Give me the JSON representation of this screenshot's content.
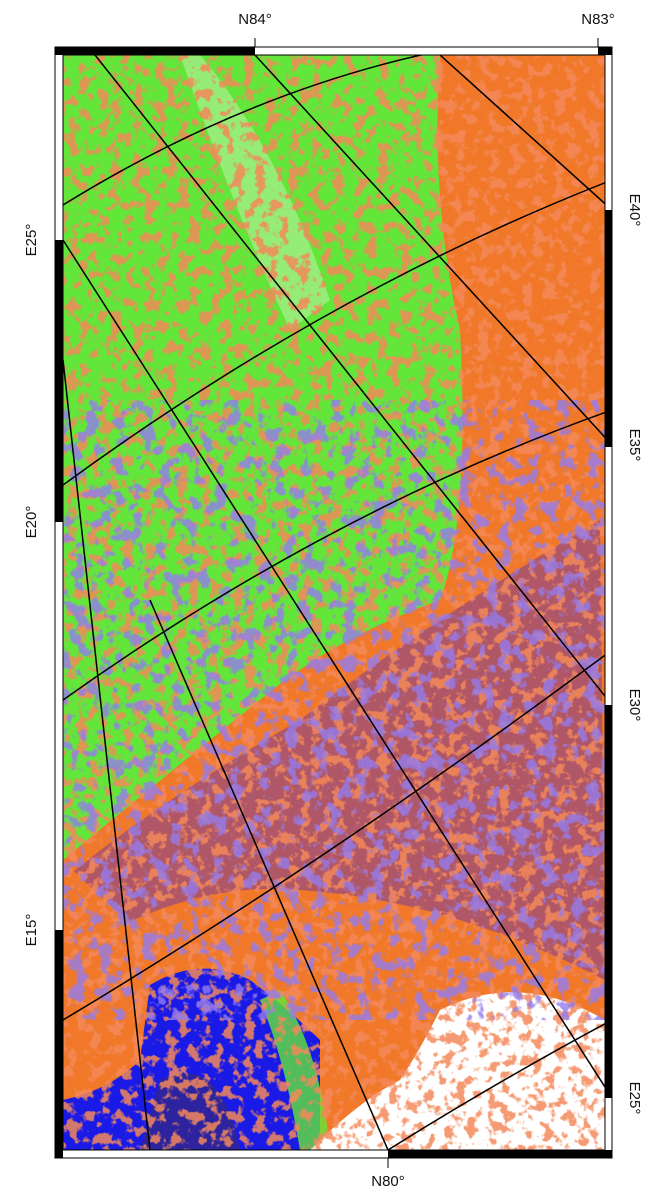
{
  "frame": {
    "top_labels": [
      "N84°",
      "N83°"
    ],
    "bottom_labels": [
      "N80°"
    ],
    "left_labels": [
      "E25°",
      "E20°",
      "E15°"
    ],
    "right_labels": [
      "E40°",
      "E35°",
      "E30°",
      "E25°"
    ]
  }
}
